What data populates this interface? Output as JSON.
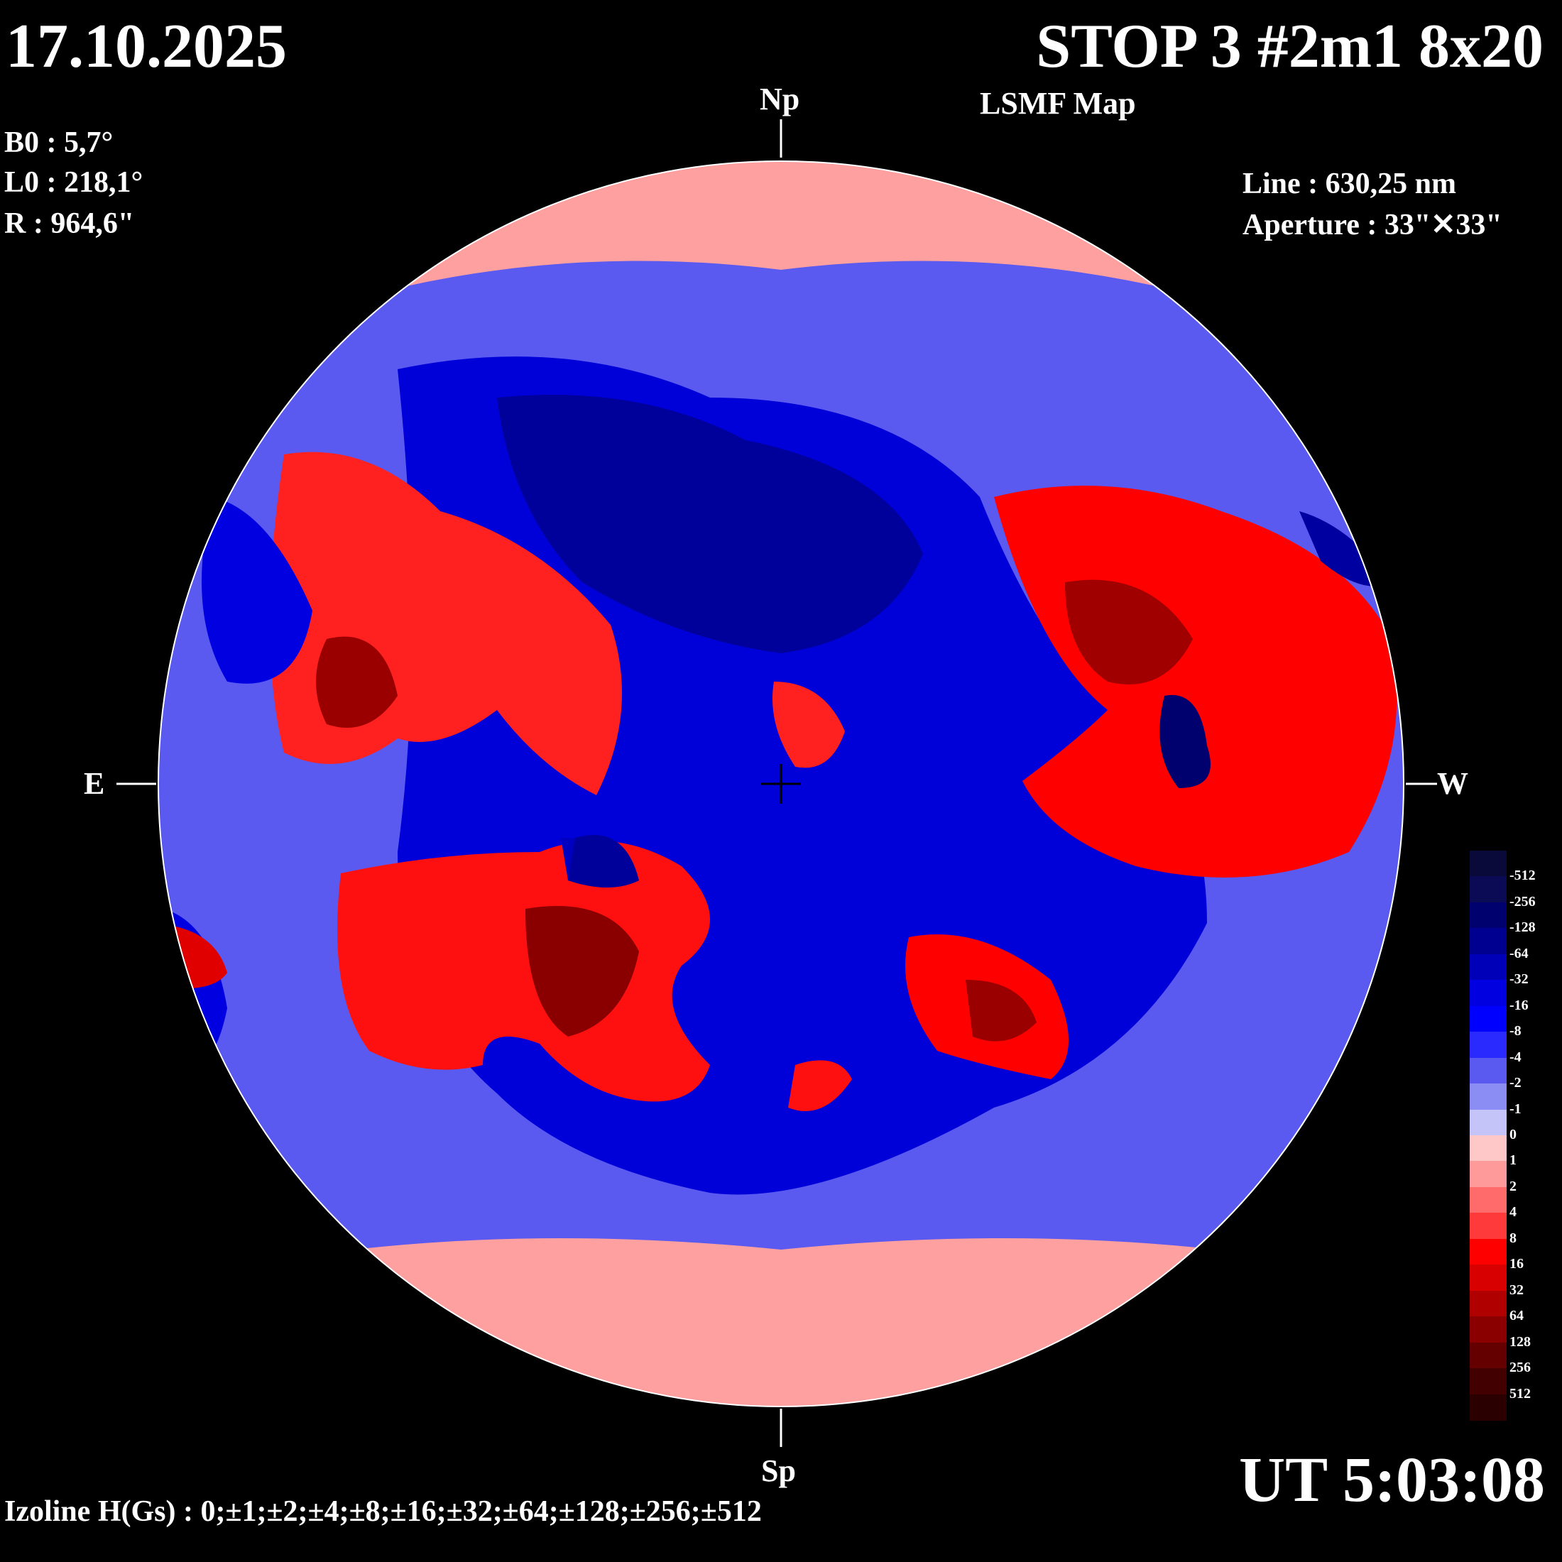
{
  "header": {
    "date": "17.10.2025",
    "title": "STOP 3 #2m1 8x20",
    "subtitle": "LSMF  Map"
  },
  "params": {
    "b0": "B0 : 5,7°",
    "l0": "L0 : 218,1°",
    "r": "R  : 964,6\""
  },
  "observation": {
    "line": "Line :  630,25 nm",
    "aperture": "Aperture : 33\"✕33\""
  },
  "directions": {
    "north": "Np",
    "south": "Sp",
    "east": "E",
    "west": "W"
  },
  "time": "UT 5:03:08",
  "izoline": "Izoline H(Gs) : 0;±1;±2;±4;±8;±16;±32;±64;±128;±256;±512",
  "colorbar": {
    "labels": [
      "-512",
      "-256",
      "-128",
      "-64",
      "-32",
      "-16",
      "-8",
      "-4",
      "-2",
      "-1",
      "0",
      "1",
      "2",
      "4",
      "8",
      "16",
      "32",
      "64",
      "128",
      "256",
      "512"
    ],
    "colors": [
      "#0a0a3a",
      "#0a0a55",
      "#00006e",
      "#000090",
      "#0000b8",
      "#0000e0",
      "#0000ff",
      "#2a2aff",
      "#5a5af0",
      "#8c8cf5",
      "#c4c4f8",
      "#ffc8c8",
      "#ff9a9a",
      "#ff6a6a",
      "#ff3a3a",
      "#ff0000",
      "#d80000",
      "#b00000",
      "#8a0000",
      "#640000",
      "#420000",
      "#2a0000"
    ]
  },
  "map": {
    "negative_color": "#0000d8",
    "positive_color": "#e60000",
    "neutral_neg": "#c4c4f8",
    "neutral_pos": "#ffc8c8",
    "contour_color": "#ffffff"
  }
}
